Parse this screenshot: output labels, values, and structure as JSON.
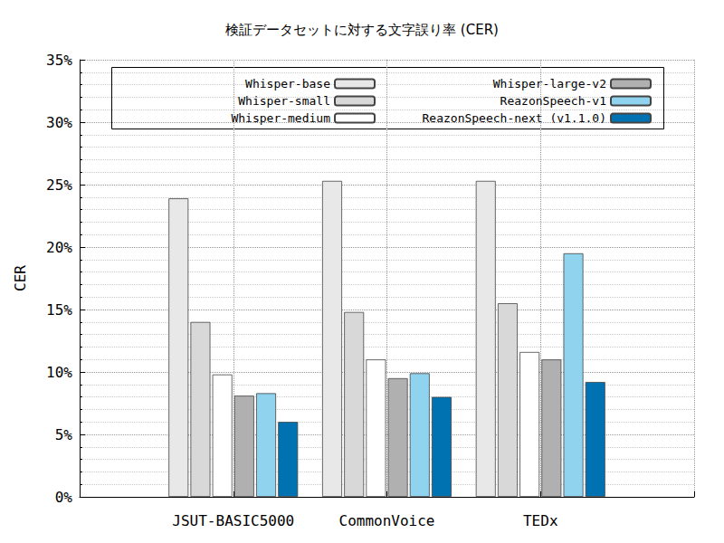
{
  "chart_data": {
    "type": "bar",
    "title": "検証データセットに対する文字誤り率 (CER)",
    "y_label": "CER",
    "categories": [
      null,
      "JSUT-BASIC5000",
      "CommonVoice",
      "TEDx",
      null
    ],
    "series": [
      {
        "name": "Whisper-base",
        "color": "#e8e8e8",
        "values": [
          null,
          23.9,
          25.3,
          25.3,
          null
        ]
      },
      {
        "name": "Whisper-small",
        "color": "#d8d8d8",
        "values": [
          null,
          14.0,
          14.8,
          15.5,
          null
        ]
      },
      {
        "name": "Whisper-medium",
        "color": "#ffffff",
        "values": [
          null,
          9.8,
          11.0,
          11.6,
          null
        ]
      },
      {
        "name": "Whisper-large-v2",
        "color": "#b0b0b0",
        "values": [
          null,
          8.1,
          9.5,
          11.0,
          null
        ]
      },
      {
        "name": "ReazonSpeech-v1",
        "color": "#8fd3ee",
        "values": [
          null,
          8.3,
          9.9,
          19.5,
          null
        ]
      },
      {
        "name": "ReazonSpeech-next (v1.1.0)",
        "color": "#0072b2",
        "values": [
          null,
          6.0,
          8.0,
          9.2,
          null
        ]
      }
    ],
    "ylim": [
      0,
      35
    ],
    "yticks": [
      {
        "value": 0,
        "label": "0%"
      },
      {
        "value": 5,
        "label": "5%"
      },
      {
        "value": 10,
        "label": "10%"
      },
      {
        "value": 15,
        "label": "15%"
      },
      {
        "value": 20,
        "label": "20%"
      },
      {
        "value": 25,
        "label": "25%"
      },
      {
        "value": 30,
        "label": "30%"
      },
      {
        "value": 35,
        "label": "35%"
      }
    ],
    "grid": true,
    "legend": "top"
  }
}
